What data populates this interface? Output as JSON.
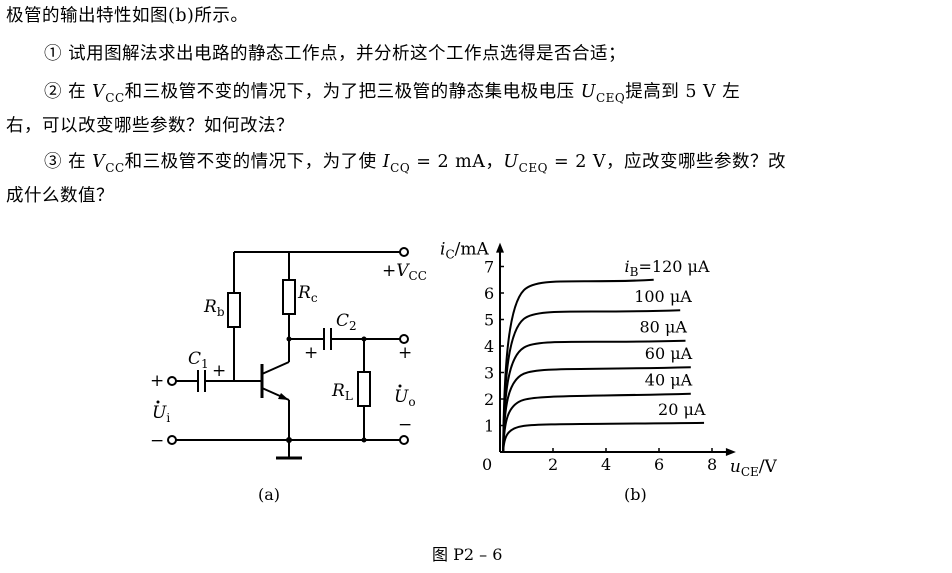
{
  "paragraph": {
    "line1": "极管的输出特性如图(b)所示。",
    "line2": "① 试用图解法求出电路的静态工作点，并分析这个工作点选得是否合适；",
    "line3_a": "② 在 ",
    "line3_v": "V",
    "line3_vsub": "CC",
    "line3_b": "和三极管不变的情况下，为了把三极管的静态集电极电压 ",
    "line3_u": "U",
    "line3_usub": "CEQ",
    "line3_c": "提高到 5 V 左",
    "line4": "右，可以改变哪些参数？如何改法？",
    "line5_a": "③ 在 ",
    "line5_v": "V",
    "line5_vsub": "CC",
    "line5_b": "和三极管不变的情况下，为了使 ",
    "line5_i": "I",
    "line5_isub": "CQ",
    "line5_c": " = 2 mA，",
    "line5_u": "U",
    "line5_usub": "CEQ",
    "line5_d": " = 2 V，应改变哪些参数？改",
    "line6": "成什么数值？"
  },
  "circuit": {
    "vcc_label": "+V",
    "vcc_sub": "CC",
    "rb_label": "R",
    "rb_sub": "b",
    "rc_label": "R",
    "rc_sub": "c",
    "c1_label": "C",
    "c1_sub": "1",
    "c2_label": "C",
    "c2_sub": "2",
    "rl_label": "R",
    "rl_sub": "L",
    "ui_label": "U",
    "ui_sub": "i",
    "uo_label": "U",
    "uo_sub": "o",
    "plus": "+",
    "minus": "−",
    "caption": "(a)"
  },
  "chart_data": {
    "type": "line",
    "y_axis_label": "i",
    "y_axis_label_sub": "C",
    "y_axis_unit": "/mA",
    "x_axis_label": "u",
    "x_axis_label_sub": "CE",
    "x_axis_unit": "/V",
    "origin_label": "0",
    "xlim": [
      0,
      8.6
    ],
    "ylim": [
      0,
      7.6
    ],
    "x_ticks": [
      2,
      4,
      6,
      8
    ],
    "y_ticks": [
      1,
      2,
      3,
      4,
      5,
      6,
      7
    ],
    "series": [
      {
        "name": "20 μA",
        "ib_prefix": "",
        "knee": 1.0,
        "end_x": 7.7,
        "end_y": 1.1
      },
      {
        "name": "40 μA",
        "ib_prefix": "",
        "knee": 2.0,
        "end_x": 7.2,
        "end_y": 2.2
      },
      {
        "name": "60 μA",
        "ib_prefix": "",
        "knee": 3.0,
        "end_x": 7.2,
        "end_y": 3.2
      },
      {
        "name": "80 μA",
        "ib_prefix": "",
        "knee": 4.0,
        "end_x": 7.0,
        "end_y": 4.2
      },
      {
        "name": "100 μA",
        "ib_prefix": "",
        "knee": 5.1,
        "end_x": 6.8,
        "end_y": 5.35
      },
      {
        "name": "120 μA",
        "ib_prefix": "i",
        "ib_sub": "B",
        "knee": 6.2,
        "end_x": 5.8,
        "end_y": 6.5
      }
    ],
    "caption": "(b)"
  },
  "figure_caption": "图 P2 – 6"
}
